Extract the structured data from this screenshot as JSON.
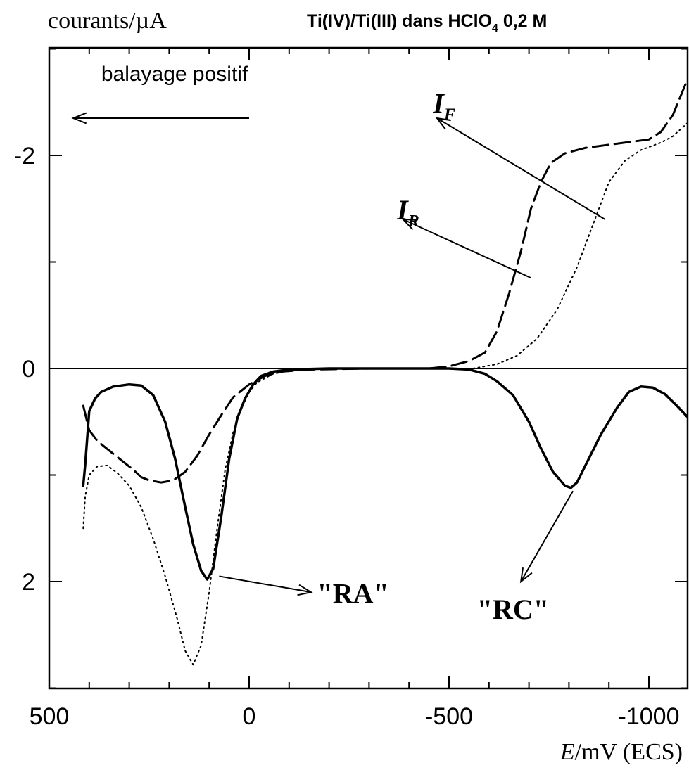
{
  "chart_data": {
    "type": "line",
    "title": "Ti(IV)/Ti(III) dans HClO",
    "title_subscript": "4",
    "title_suffix": " 0,2 M",
    "ylabel": "courants/µA",
    "xlabel_italic": "E",
    "xlabel_rest": "/mV (ECS)",
    "x_reversed": true,
    "y_reversed": true,
    "xlim": [
      500,
      -1095
    ],
    "ylim": [
      -2.9,
      3.0
    ],
    "x_ticks": [
      500,
      0,
      -500,
      -1000
    ],
    "x_tick_labels": [
      "500",
      "0",
      "-500",
      "-1000"
    ],
    "y_ticks": [
      -2,
      0,
      2
    ],
    "y_tick_labels": [
      "-2",
      "0",
      "2"
    ],
    "zero_line": true,
    "series": [
      {
        "style": "dashed",
        "points": [
          [
            415,
            0.35
          ],
          [
            400,
            0.58
          ],
          [
            380,
            0.68
          ],
          [
            350,
            0.77
          ],
          [
            320,
            0.86
          ],
          [
            290,
            0.95
          ],
          [
            270,
            1.02
          ],
          [
            250,
            1.05
          ],
          [
            220,
            1.07
          ],
          [
            190,
            1.05
          ],
          [
            160,
            0.97
          ],
          [
            130,
            0.82
          ],
          [
            100,
            0.62
          ],
          [
            70,
            0.44
          ],
          [
            40,
            0.27
          ],
          [
            0,
            0.15
          ],
          [
            -40,
            0.07
          ],
          [
            -80,
            0.03
          ],
          [
            -150,
            0.01
          ],
          [
            -300,
            0.0
          ],
          [
            -450,
            0.0
          ],
          [
            -500,
            -0.02
          ],
          [
            -550,
            -0.07
          ],
          [
            -590,
            -0.15
          ],
          [
            -620,
            -0.35
          ],
          [
            -650,
            -0.7
          ],
          [
            -680,
            -1.1
          ],
          [
            -705,
            -1.5
          ],
          [
            -730,
            -1.75
          ],
          [
            -755,
            -1.93
          ],
          [
            -790,
            -2.02
          ],
          [
            -840,
            -2.07
          ],
          [
            -900,
            -2.1
          ],
          [
            -960,
            -2.13
          ],
          [
            -1000,
            -2.15
          ],
          [
            -1030,
            -2.22
          ],
          [
            -1060,
            -2.38
          ],
          [
            -1095,
            -2.7
          ]
        ]
      },
      {
        "style": "dotted",
        "points": [
          [
            415,
            1.5
          ],
          [
            410,
            1.2
          ],
          [
            400,
            1.0
          ],
          [
            380,
            0.92
          ],
          [
            355,
            0.91
          ],
          [
            330,
            0.98
          ],
          [
            300,
            1.1
          ],
          [
            270,
            1.3
          ],
          [
            240,
            1.6
          ],
          [
            210,
            1.95
          ],
          [
            180,
            2.35
          ],
          [
            160,
            2.65
          ],
          [
            140,
            2.78
          ],
          [
            120,
            2.6
          ],
          [
            100,
            2.1
          ],
          [
            80,
            1.5
          ],
          [
            60,
            0.95
          ],
          [
            40,
            0.6
          ],
          [
            20,
            0.38
          ],
          [
            0,
            0.22
          ],
          [
            -20,
            0.13
          ],
          [
            -60,
            0.05
          ],
          [
            -100,
            0.02
          ],
          [
            -200,
            0.0
          ],
          [
            -500,
            0.0
          ],
          [
            -560,
            0.0
          ],
          [
            -620,
            -0.04
          ],
          [
            -670,
            -0.12
          ],
          [
            -720,
            -0.28
          ],
          [
            -770,
            -0.55
          ],
          [
            -820,
            -0.95
          ],
          [
            -860,
            -1.35
          ],
          [
            -900,
            -1.75
          ],
          [
            -940,
            -1.95
          ],
          [
            -980,
            -2.05
          ],
          [
            -1030,
            -2.12
          ],
          [
            -1060,
            -2.18
          ],
          [
            -1095,
            -2.3
          ]
        ]
      },
      {
        "style": "solid",
        "points": [
          [
            415,
            1.1
          ],
          [
            410,
            0.9
          ],
          [
            400,
            0.4
          ],
          [
            385,
            0.28
          ],
          [
            370,
            0.22
          ],
          [
            340,
            0.17
          ],
          [
            300,
            0.15
          ],
          [
            270,
            0.16
          ],
          [
            240,
            0.25
          ],
          [
            210,
            0.5
          ],
          [
            185,
            0.85
          ],
          [
            160,
            1.3
          ],
          [
            140,
            1.65
          ],
          [
            120,
            1.9
          ],
          [
            105,
            1.98
          ],
          [
            90,
            1.88
          ],
          [
            70,
            1.4
          ],
          [
            50,
            0.85
          ],
          [
            30,
            0.47
          ],
          [
            10,
            0.28
          ],
          [
            -10,
            0.15
          ],
          [
            -30,
            0.07
          ],
          [
            -60,
            0.03
          ],
          [
            -100,
            0.01
          ],
          [
            -200,
            0.0
          ],
          [
            -500,
            0.0
          ],
          [
            -550,
            0.01
          ],
          [
            -590,
            0.05
          ],
          [
            -620,
            0.12
          ],
          [
            -660,
            0.25
          ],
          [
            -700,
            0.5
          ],
          [
            -730,
            0.75
          ],
          [
            -760,
            0.97
          ],
          [
            -790,
            1.1
          ],
          [
            -805,
            1.12
          ],
          [
            -820,
            1.07
          ],
          [
            -840,
            0.92
          ],
          [
            -880,
            0.62
          ],
          [
            -920,
            0.37
          ],
          [
            -950,
            0.22
          ],
          [
            -980,
            0.17
          ],
          [
            -1010,
            0.18
          ],
          [
            -1040,
            0.24
          ],
          [
            -1070,
            0.35
          ],
          [
            -1095,
            0.45
          ]
        ]
      }
    ],
    "annotations": [
      {
        "text": "balayage positif",
        "x": 370,
        "y": -2.7
      },
      {
        "text": "I",
        "subscript": "F",
        "x": -460,
        "y": -2.4
      },
      {
        "text": "I",
        "subscript": "R",
        "x": -370,
        "y": -1.4
      },
      {
        "text": "\"RA\"",
        "x": -170,
        "y": 2.2
      },
      {
        "text": "\"RC\"",
        "x": -570,
        "y": 2.35
      }
    ],
    "arrows": [
      {
        "from": [
          0,
          -2.35
        ],
        "to": [
          440,
          -2.35
        ]
      },
      {
        "from": [
          -890,
          -1.4
        ],
        "to": [
          -470,
          -2.35
        ]
      },
      {
        "from": [
          -705,
          -0.85
        ],
        "to": [
          -385,
          -1.4
        ]
      },
      {
        "from": [
          75,
          1.95
        ],
        "to": [
          -155,
          2.1
        ]
      },
      {
        "from": [
          -810,
          1.15
        ],
        "to": [
          -680,
          2.0
        ]
      }
    ]
  }
}
